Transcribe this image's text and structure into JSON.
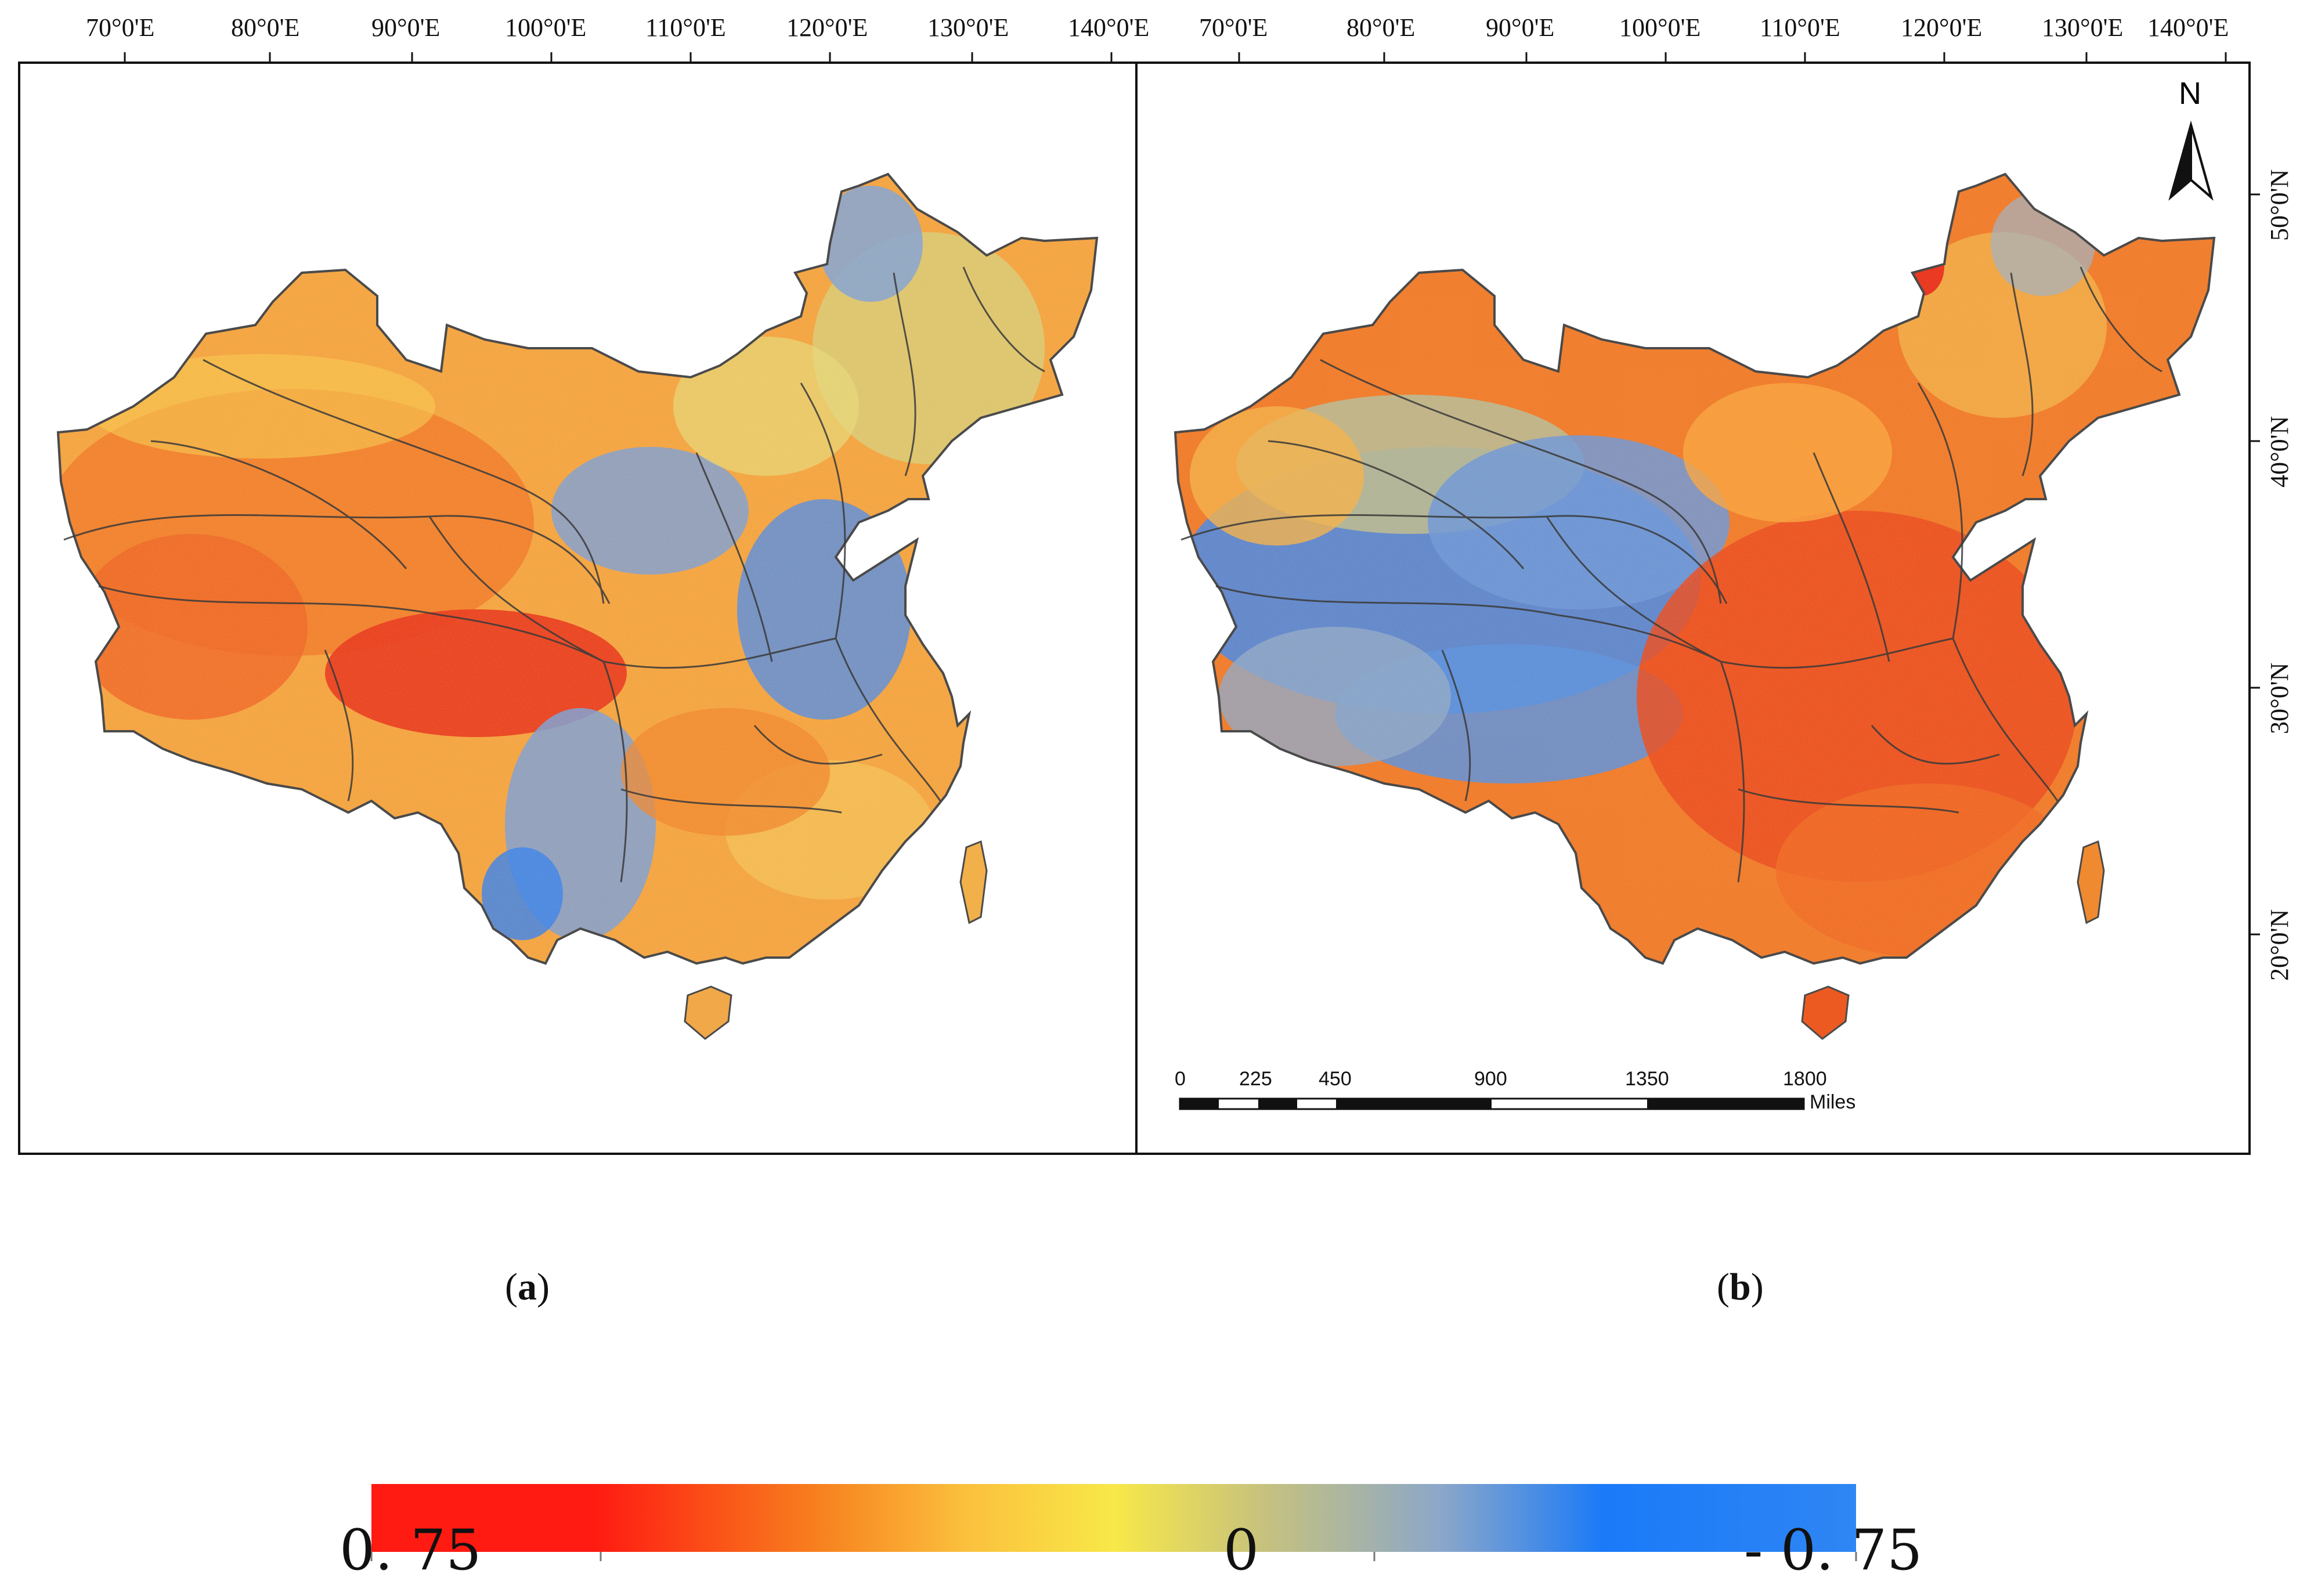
{
  "figure": {
    "top_longitude_ticks": [
      "70°0'E",
      "80°0'E",
      "90°0'E",
      "100°0'E",
      "110°0'E",
      "120°0'E",
      "130°0'E",
      "140°0'E"
    ],
    "right_latitude_ticks": [
      "50°0'N",
      "40°0'N",
      "30°0'N",
      "20°0'N"
    ],
    "panel_labels": [
      {
        "open": "(",
        "letter": "a",
        "close": ")"
      },
      {
        "open": "(",
        "letter": "b",
        "close": ")"
      }
    ],
    "north_arrow_label": "N",
    "scale_bar": {
      "ticks": [
        "0",
        "225",
        "450",
        "900",
        "1350",
        "1800"
      ],
      "unit": "Miles"
    },
    "colorbar": {
      "labels": [
        "0. 75",
        "0",
        "- 0. 75"
      ],
      "colors": [
        "#ff1a12",
        "#ff1a12",
        "#f7801e",
        "#fbc03d",
        "#f8e848",
        "#c7c27d",
        "#8ca7c9",
        "#1a7af8",
        "#2f86f4"
      ]
    }
  }
}
